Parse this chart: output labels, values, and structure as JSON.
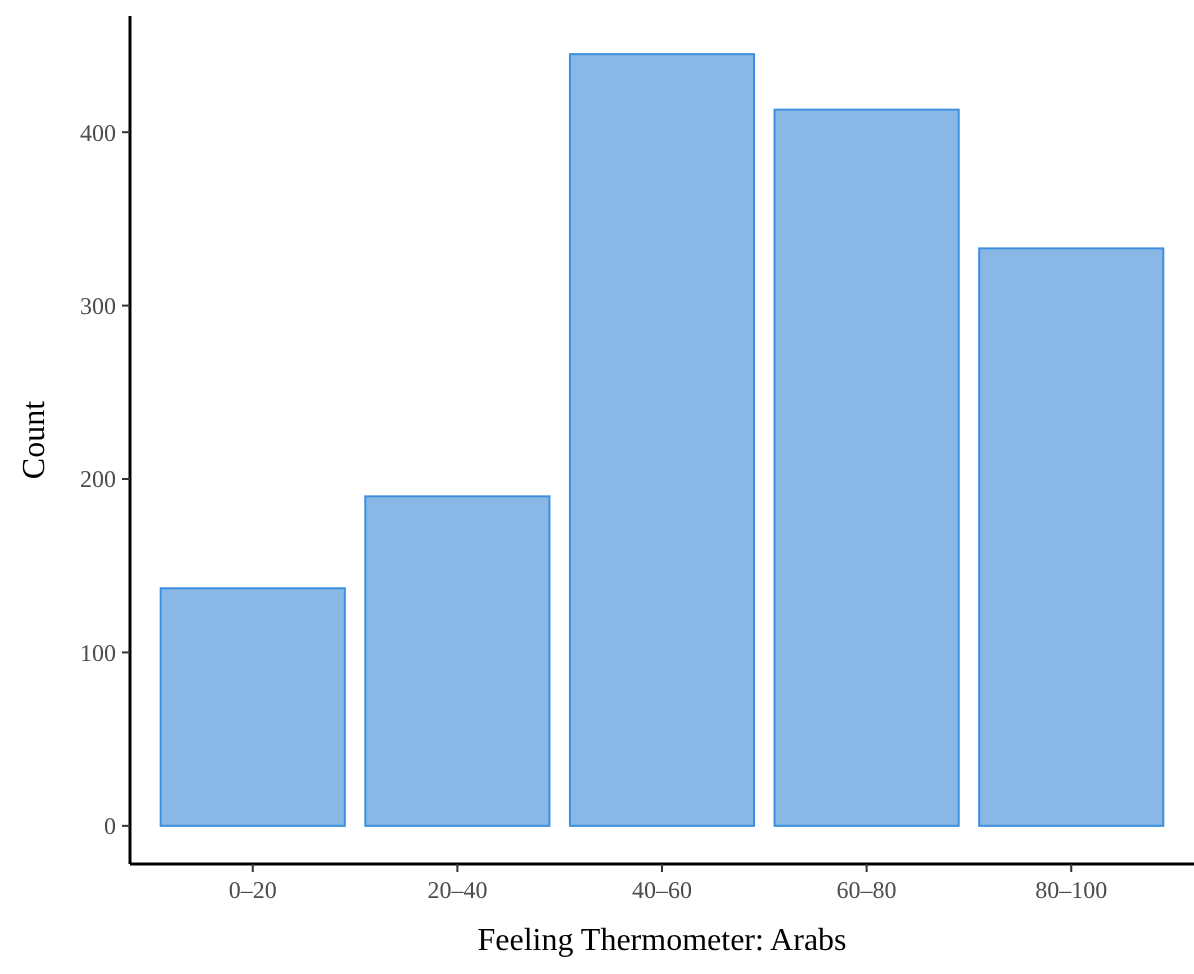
{
  "chart_data": {
    "type": "bar",
    "xlabel": "Feeling Thermometer: Arabs",
    "ylabel": "Count",
    "categories": [
      "0–20",
      "20–40",
      "40–60",
      "60–80",
      "80–100"
    ],
    "values": [
      137,
      190,
      445,
      413,
      333
    ],
    "color": "#89b8e6",
    "ylim": [
      -22,
      467
    ],
    "yticks": [
      0,
      100,
      200,
      300,
      400
    ],
    "grid": false
  }
}
